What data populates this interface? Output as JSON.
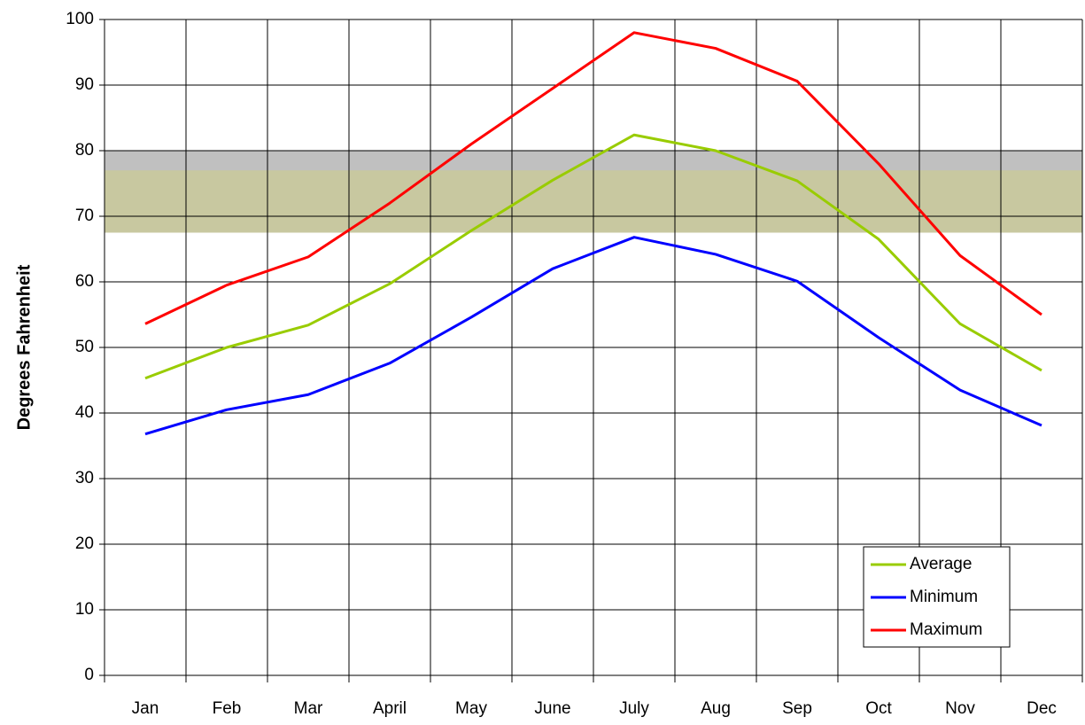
{
  "chart_data": {
    "type": "line",
    "y_label": "Degrees Fahrenheit",
    "categories": [
      "Jan",
      "Feb",
      "Mar",
      "April",
      "May",
      "June",
      "July",
      "Aug",
      "Sep",
      "Oct",
      "Nov",
      "Dec"
    ],
    "series": [
      {
        "name": "Average",
        "color": "#99cc00",
        "values": [
          45.3,
          50,
          53.4,
          59.7,
          67.8,
          75.5,
          82.4,
          80,
          75.4,
          66.5,
          53.6,
          46.5
        ]
      },
      {
        "name": "Minimum",
        "color": "#0000ff",
        "values": [
          36.8,
          40.5,
          42.8,
          47.6,
          54.6,
          62,
          66.8,
          64.2,
          60.1,
          51.5,
          43.5,
          38.1
        ]
      },
      {
        "name": "Maximum",
        "color": "#ff0000",
        "values": [
          53.6,
          59.5,
          63.8,
          72,
          81,
          89.5,
          98,
          95.6,
          90.6,
          78,
          64,
          55
        ]
      }
    ],
    "bands": [
      {
        "range": [
          67.5,
          80
        ],
        "color": "#c0c0c0"
      },
      {
        "range": [
          67.5,
          77
        ],
        "color": "#c8c8a0"
      }
    ],
    "ylim": [
      0,
      100
    ],
    "yticks": [
      0,
      10,
      20,
      30,
      40,
      50,
      60,
      70,
      80,
      90,
      100
    ],
    "grid": true,
    "legend": "lower right"
  }
}
